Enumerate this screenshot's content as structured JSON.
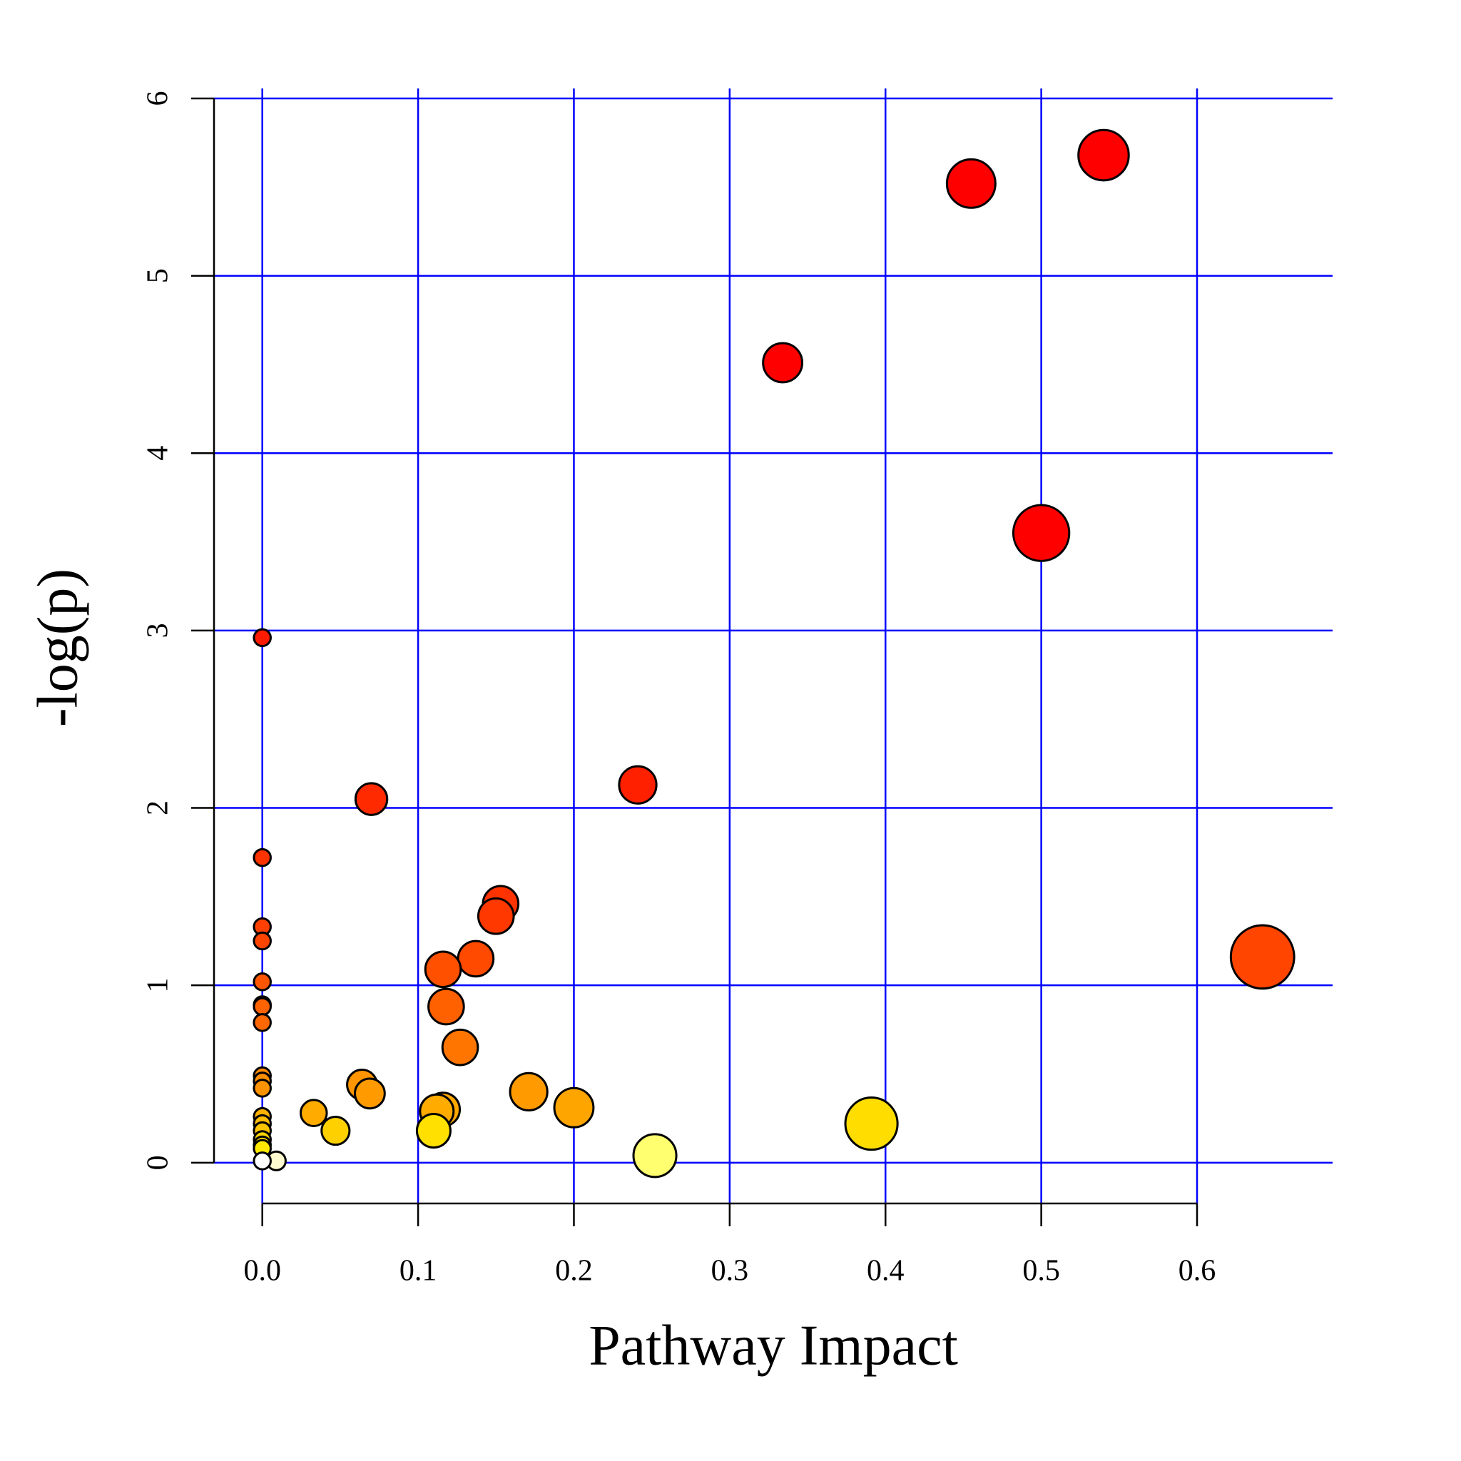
{
  "chart_data": {
    "type": "scatter",
    "xlabel": "Pathway Impact",
    "ylabel": "-log(p)",
    "xlim": [
      -0.031,
      0.687
    ],
    "ylim": [
      -0.23,
      6.0
    ],
    "xticks": [
      {
        "value": 0,
        "label": "0.0"
      },
      0.1,
      0.2,
      0.3,
      0.4,
      0.5,
      0.6
    ],
    "yticks": [
      0,
      1,
      2,
      3,
      4,
      5,
      6
    ],
    "grid": true,
    "grid_color": "#0000ff",
    "series": [
      {
        "x": [
          0.54,
          0.455,
          0.334,
          0.5,
          0.0,
          0.241,
          0.07,
          0.0,
          0.153,
          0.15,
          0.0,
          0.0,
          0.137,
          0.642,
          0.116,
          0.0,
          0.118,
          0.0,
          0.0,
          0.0,
          0.127,
          0.0,
          0.0,
          0.0,
          0.064,
          0.069,
          0.171,
          0.2,
          0.116,
          0.112,
          0.033,
          0.0,
          0.0,
          0.0,
          0.047,
          0.11,
          0.0,
          0.0,
          0.391,
          0.252,
          0.0,
          0.009,
          0.0
        ],
        "values": [
          5.68,
          5.52,
          4.51,
          3.55,
          2.96,
          2.13,
          2.05,
          1.72,
          1.46,
          1.39,
          1.33,
          1.25,
          1.15,
          1.16,
          1.09,
          1.02,
          0.88,
          0.89,
          0.88,
          0.79,
          0.65,
          0.49,
          0.46,
          0.42,
          0.44,
          0.39,
          0.4,
          0.31,
          0.3,
          0.29,
          0.28,
          0.26,
          0.22,
          0.18,
          0.18,
          0.18,
          0.13,
          0.1,
          0.22,
          0.04,
          0.08,
          0.01,
          0.01
        ],
        "sizes": [
          27,
          26,
          21,
          30,
          9,
          20,
          17,
          9,
          19,
          19,
          9,
          9,
          19,
          34,
          19,
          9,
          19,
          9,
          9,
          9,
          19,
          9,
          9,
          9,
          16,
          16,
          20,
          21,
          18,
          18,
          14,
          9,
          9,
          9,
          15,
          18,
          9,
          9,
          28,
          23,
          9,
          10,
          9
        ],
        "colors": [
          "#ff0000",
          "#ff0000",
          "#ff0000",
          "#ff0000",
          "#ff1a00",
          "#ff2000",
          "#ff2a00",
          "#ff3300",
          "#ff3300",
          "#ff3800",
          "#ff4000",
          "#ff4400",
          "#ff4a00",
          "#ff4500",
          "#ff5000",
          "#ff5500",
          "#ff6000",
          "#ff6000",
          "#ff6200",
          "#ff6800",
          "#ff7500",
          "#ff8a00",
          "#ff8d00",
          "#ff9200",
          "#ff9500",
          "#ff9a00",
          "#ff9a00",
          "#ffa500",
          "#ffa800",
          "#ffab00",
          "#ffab00",
          "#ffb000",
          "#ffbb00",
          "#ffc400",
          "#ffd000",
          "#ffe000",
          "#ffd400",
          "#ffe000",
          "#ffdd00",
          "#ffff70",
          "#ffe800",
          "#fffbd0",
          "#ffffff"
        ]
      }
    ]
  }
}
